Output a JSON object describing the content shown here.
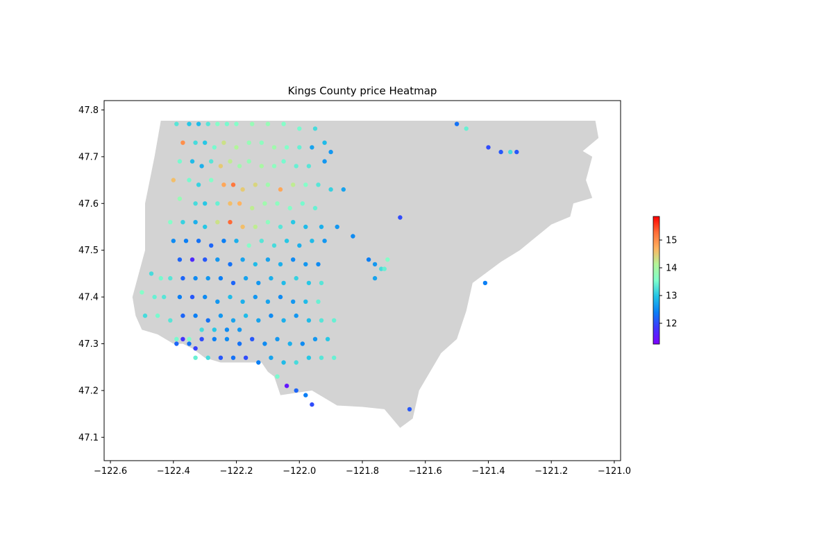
{
  "chart_data": {
    "type": "scatter",
    "title": "Kings County price Heatmap",
    "xlabel": "",
    "ylabel": "",
    "xlim": [
      -122.62,
      -120.98
    ],
    "ylim": [
      47.05,
      47.82
    ],
    "xticks": [
      -122.6,
      -122.4,
      -122.2,
      -122.0,
      -121.8,
      -121.6,
      -121.4,
      -121.2,
      -121.0
    ],
    "xtick_labels": [
      "−122.6",
      "−122.4",
      "−122.2",
      "−122.0",
      "−121.8",
      "−121.6",
      "−121.4",
      "−121.2",
      "−121.0"
    ],
    "yticks": [
      47.1,
      47.2,
      47.3,
      47.4,
      47.5,
      47.6,
      47.7,
      47.8
    ],
    "ytick_labels": [
      "47.1",
      "47.2",
      "47.3",
      "47.4",
      "47.5",
      "47.6",
      "47.7",
      "47.8"
    ],
    "colorbar": {
      "colormap": "rainbow",
      "range": [
        11.25,
        15.85
      ],
      "ticks": [
        12,
        13,
        14,
        15
      ],
      "tick_labels": [
        "12",
        "13",
        "14",
        "15"
      ]
    },
    "grid": false,
    "background_region": {
      "fill": "#d3d3d3",
      "lon": [
        -122.44,
        -121.9,
        -121.45,
        -121.06,
        -121.05,
        -121.1,
        -121.07,
        -121.09,
        -121.07,
        -121.13,
        -121.14,
        -121.2,
        -121.3,
        -121.36,
        -121.45,
        -121.47,
        -121.5,
        -121.55,
        -121.62,
        -121.64,
        -121.68,
        -121.73,
        -121.8,
        -121.88,
        -121.96,
        -122.06,
        -122.08,
        -122.1,
        -122.12,
        -122.14,
        -122.2,
        -122.25,
        -122.3,
        -122.34,
        -122.37,
        -122.4,
        -122.45,
        -122.5,
        -122.52,
        -122.53,
        -122.51,
        -122.49,
        -122.49,
        -122.46,
        -122.44
      ],
      "lat": [
        47.777,
        47.777,
        47.777,
        47.777,
        47.74,
        47.712,
        47.7,
        47.65,
        47.612,
        47.6,
        47.572,
        47.555,
        47.5,
        47.475,
        47.43,
        47.37,
        47.31,
        47.28,
        47.2,
        47.14,
        47.12,
        47.16,
        47.165,
        47.168,
        47.2,
        47.19,
        47.23,
        47.24,
        47.26,
        47.26,
        47.26,
        47.26,
        47.27,
        47.29,
        47.3,
        47.3,
        47.32,
        47.33,
        47.36,
        47.4,
        47.45,
        47.5,
        47.6,
        47.7,
        47.777
      ]
    },
    "points": {
      "lon": [
        -122.39,
        -122.35,
        -122.32,
        -122.29,
        -122.26,
        -122.23,
        -122.2,
        -122.15,
        -122.1,
        -122.05,
        -122.0,
        -121.95,
        -122.37,
        -122.33,
        -122.3,
        -122.27,
        -122.24,
        -122.2,
        -122.16,
        -122.12,
        -122.08,
        -122.04,
        -122.0,
        -121.96,
        -121.92,
        -121.9,
        -122.38,
        -122.34,
        -122.31,
        -122.28,
        -122.25,
        -122.22,
        -122.19,
        -122.16,
        -122.12,
        -122.08,
        -122.05,
        -122.01,
        -121.97,
        -121.92,
        -122.4,
        -122.35,
        -122.32,
        -122.28,
        -122.24,
        -122.21,
        -122.18,
        -122.14,
        -122.1,
        -122.06,
        -122.02,
        -121.98,
        -121.94,
        -121.9,
        -121.86,
        -122.38,
        -122.33,
        -122.3,
        -122.26,
        -122.22,
        -122.19,
        -122.15,
        -122.11,
        -122.07,
        -122.03,
        -121.99,
        -121.95,
        -122.41,
        -122.37,
        -122.33,
        -122.3,
        -122.26,
        -122.22,
        -122.18,
        -122.14,
        -122.1,
        -122.06,
        -122.02,
        -121.98,
        -121.93,
        -121.88,
        -121.83,
        -122.4,
        -122.36,
        -122.32,
        -122.28,
        -122.24,
        -122.2,
        -122.16,
        -122.12,
        -122.08,
        -122.04,
        -122.0,
        -121.96,
        -121.92,
        -121.78,
        -121.76,
        -121.74,
        -121.72,
        -122.38,
        -122.34,
        -122.3,
        -122.26,
        -122.22,
        -122.18,
        -122.14,
        -122.1,
        -122.06,
        -122.02,
        -121.98,
        -121.94,
        -121.76,
        -121.73,
        -122.47,
        -122.44,
        -122.41,
        -122.37,
        -122.33,
        -122.29,
        -122.25,
        -122.21,
        -122.17,
        -122.13,
        -122.09,
        -122.05,
        -122.01,
        -121.97,
        -121.93,
        -122.5,
        -122.46,
        -122.43,
        -122.38,
        -122.34,
        -122.3,
        -122.26,
        -122.22,
        -122.18,
        -122.14,
        -122.1,
        -122.06,
        -122.02,
        -121.98,
        -121.94,
        -122.49,
        -122.45,
        -122.41,
        -122.37,
        -122.33,
        -122.29,
        -122.25,
        -122.21,
        -122.17,
        -122.13,
        -122.09,
        -122.05,
        -122.01,
        -121.97,
        -121.93,
        -121.89,
        -122.39,
        -122.35,
        -122.31,
        -122.27,
        -122.23,
        -122.19,
        -122.15,
        -122.11,
        -122.07,
        -122.03,
        -121.99,
        -121.95,
        -121.91,
        -122.33,
        -122.29,
        -122.25,
        -122.21,
        -122.17,
        -122.13,
        -122.09,
        -122.05,
        -122.01,
        -121.97,
        -121.93,
        -121.89,
        -122.07,
        -122.04,
        -122.01,
        -121.98,
        -121.96,
        -121.5,
        -121.47,
        -121.4,
        -121.36,
        -121.33,
        -121.31,
        -121.68,
        -121.65,
        -121.41,
        -122.31,
        -122.27,
        -122.23,
        -122.19,
        -122.35,
        -122.33,
        -122.39,
        -122.37
      ],
      "lat": [
        47.77,
        47.77,
        47.77,
        47.77,
        47.77,
        47.77,
        47.77,
        47.77,
        47.77,
        47.77,
        47.76,
        47.76,
        47.73,
        47.73,
        47.73,
        47.72,
        47.73,
        47.72,
        47.73,
        47.73,
        47.72,
        47.72,
        47.72,
        47.72,
        47.73,
        47.71,
        47.69,
        47.69,
        47.68,
        47.69,
        47.68,
        47.69,
        47.68,
        47.69,
        47.68,
        47.68,
        47.69,
        47.68,
        47.68,
        47.69,
        47.65,
        47.65,
        47.64,
        47.65,
        47.64,
        47.64,
        47.63,
        47.64,
        47.64,
        47.63,
        47.64,
        47.64,
        47.64,
        47.63,
        47.63,
        47.61,
        47.6,
        47.6,
        47.6,
        47.6,
        47.6,
        47.59,
        47.6,
        47.6,
        47.59,
        47.6,
        47.59,
        47.56,
        47.56,
        47.56,
        47.55,
        47.56,
        47.56,
        47.55,
        47.55,
        47.56,
        47.55,
        47.56,
        47.55,
        47.55,
        47.55,
        47.53,
        47.52,
        47.52,
        47.52,
        47.51,
        47.52,
        47.52,
        47.51,
        47.52,
        47.51,
        47.52,
        47.51,
        47.52,
        47.52,
        47.48,
        47.47,
        47.46,
        47.48,
        47.48,
        47.48,
        47.48,
        47.48,
        47.47,
        47.48,
        47.47,
        47.48,
        47.47,
        47.48,
        47.47,
        47.47,
        47.44,
        47.46,
        47.45,
        47.44,
        47.44,
        47.44,
        47.44,
        47.44,
        47.44,
        47.43,
        47.44,
        47.43,
        47.44,
        47.43,
        47.44,
        47.43,
        47.43,
        47.41,
        47.4,
        47.4,
        47.4,
        47.4,
        47.4,
        47.39,
        47.4,
        47.39,
        47.4,
        47.39,
        47.4,
        47.39,
        47.39,
        47.39,
        47.36,
        47.36,
        47.35,
        47.36,
        47.36,
        47.35,
        47.36,
        47.35,
        47.36,
        47.35,
        47.36,
        47.35,
        47.36,
        47.35,
        47.35,
        47.35,
        47.31,
        47.31,
        47.31,
        47.31,
        47.31,
        47.3,
        47.31,
        47.3,
        47.31,
        47.3,
        47.3,
        47.31,
        47.31,
        47.27,
        47.27,
        47.27,
        47.27,
        47.27,
        47.26,
        47.27,
        47.26,
        47.26,
        47.27,
        47.27,
        47.27,
        47.23,
        47.21,
        47.2,
        47.19,
        47.17,
        47.77,
        47.76,
        47.72,
        47.71,
        47.71,
        47.71,
        47.57,
        47.16,
        47.43,
        47.33,
        47.33,
        47.33,
        47.33,
        47.3,
        47.29,
        47.3,
        47.31
      ],
      "value": [
        13.3,
        13.0,
        12.9,
        13.3,
        13.6,
        13.5,
        13.6,
        13.8,
        13.8,
        13.6,
        13.5,
        13.2,
        15.0,
        13.2,
        13.0,
        13.5,
        14.3,
        14.1,
        13.8,
        13.7,
        13.9,
        13.6,
        13.4,
        12.7,
        12.9,
        12.6,
        13.5,
        12.9,
        12.8,
        13.3,
        14.5,
        14.2,
        13.9,
        13.8,
        14.0,
        13.7,
        13.5,
        13.4,
        13.3,
        12.6,
        14.6,
        13.5,
        13.1,
        13.6,
        14.8,
        15.2,
        14.5,
        14.4,
        13.9,
        14.8,
        14.2,
        13.6,
        13.3,
        13.1,
        12.7,
        13.8,
        13.2,
        13.0,
        13.4,
        14.6,
        14.7,
        14.2,
        13.9,
        13.7,
        13.6,
        13.5,
        13.4,
        13.6,
        13.1,
        12.8,
        13.0,
        14.3,
        15.3,
        14.6,
        14.2,
        13.7,
        13.3,
        13.0,
        12.9,
        12.8,
        12.6,
        12.5,
        12.5,
        12.4,
        12.3,
        12.2,
        12.4,
        12.8,
        13.6,
        13.3,
        13.2,
        13.0,
        12.8,
        12.9,
        12.6,
        12.4,
        12.6,
        13.2,
        13.6,
        12.2,
        11.7,
        12.1,
        12.6,
        12.3,
        12.7,
        12.9,
        12.7,
        12.8,
        12.5,
        12.6,
        12.5,
        12.7,
        13.4,
        13.2,
        13.5,
        13.3,
        12.2,
        12.5,
        12.6,
        12.4,
        12.2,
        12.7,
        12.6,
        12.8,
        12.9,
        13.1,
        13.0,
        13.3,
        13.6,
        13.4,
        13.3,
        12.4,
        12.1,
        12.5,
        12.6,
        12.9,
        12.8,
        12.6,
        12.7,
        12.5,
        12.6,
        12.9,
        13.4,
        13.2,
        13.5,
        13.3,
        12.2,
        12.4,
        12.3,
        12.6,
        12.7,
        12.9,
        12.7,
        12.5,
        12.8,
        12.6,
        12.9,
        13.3,
        13.4,
        13.5,
        13.6,
        12.0,
        12.4,
        12.5,
        12.3,
        12.1,
        12.5,
        12.6,
        12.8,
        12.5,
        12.6,
        13.0,
        13.4,
        13.2,
        12.1,
        12.3,
        12.0,
        12.4,
        12.7,
        12.9,
        13.2,
        13.0,
        13.3,
        13.4,
        13.5,
        11.5,
        12.2,
        12.4,
        12.0,
        12.3,
        13.4,
        12.0,
        12.1,
        13.2,
        12.1,
        12.0,
        12.1,
        12.4,
        13.2,
        13.0,
        12.5,
        12.6,
        12.3,
        11.9,
        12.2,
        11.8,
        12.1,
        12.4
      ]
    }
  }
}
